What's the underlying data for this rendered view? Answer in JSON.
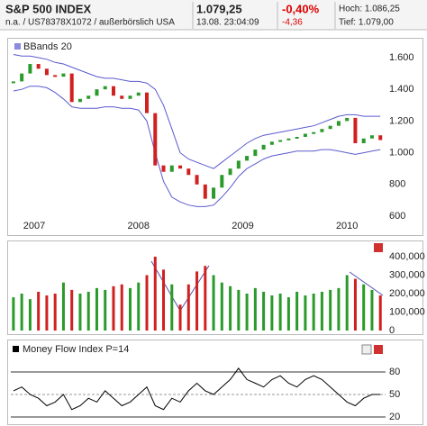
{
  "header": {
    "name": "S&P 500 INDEX",
    "info": "n.a. / US78378X1072 / außerbörslich USA",
    "price": "1.079,25",
    "time": "13.08. 23:04:09",
    "change_pct": "-0,40%",
    "change": "-4,36",
    "high": "Hoch: 1.086,25",
    "low": "Tief: 1.079,00"
  },
  "chart_data": [
    {
      "type": "line",
      "legend": "BBands 20",
      "x": [
        2007.3,
        2007.38,
        2007.46,
        2007.54,
        2007.62,
        2007.7,
        2007.78,
        2007.86,
        2007.94,
        2008.02,
        2008.1,
        2008.18,
        2008.26,
        2008.34,
        2008.42,
        2008.5,
        2008.58,
        2008.66,
        2008.74,
        2008.82,
        2008.9,
        2008.98,
        2009.06,
        2009.14,
        2009.22,
        2009.3,
        2009.38,
        2009.46,
        2009.54,
        2009.62,
        2009.7,
        2009.78,
        2009.86,
        2009.94,
        2010.02,
        2010.1,
        2010.18,
        2010.26,
        2010.34,
        2010.42,
        2010.5,
        2010.58,
        2010.66,
        2010.74,
        2010.82
      ],
      "series": [
        {
          "values": [
            1450,
            1500,
            1560,
            1530,
            1490,
            1480,
            1500,
            1320,
            1340,
            1360,
            1400,
            1420,
            1360,
            1340,
            1360,
            1380,
            1250,
            920,
            880,
            920,
            900,
            860,
            800,
            710,
            780,
            860,
            900,
            950,
            980,
            1020,
            1050,
            1070,
            1080,
            1090,
            1100,
            1120,
            1130,
            1150,
            1170,
            1200,
            1220,
            1060,
            1090,
            1110,
            1080
          ]
        }
      ],
      "up_color": "#2a9a2a",
      "down_color": "#d02020",
      "bands": {
        "color": "#5a5acf",
        "upper": [
          1620,
          1610,
          1610,
          1600,
          1590,
          1570,
          1560,
          1540,
          1520,
          1500,
          1480,
          1470,
          1470,
          1460,
          1450,
          1450,
          1440,
          1400,
          1300,
          1150,
          1000,
          960,
          940,
          920,
          900,
          940,
          980,
          1020,
          1060,
          1090,
          1110,
          1120,
          1130,
          1140,
          1150,
          1160,
          1170,
          1190,
          1210,
          1230,
          1240,
          1240,
          1230,
          1230,
          1230
        ],
        "lower": [
          1390,
          1400,
          1420,
          1420,
          1410,
          1380,
          1340,
          1290,
          1280,
          1280,
          1280,
          1290,
          1290,
          1280,
          1280,
          1270,
          1200,
          1000,
          820,
          720,
          690,
          670,
          660,
          660,
          670,
          720,
          780,
          850,
          900,
          930,
          960,
          980,
          990,
          1000,
          1010,
          1010,
          1010,
          1020,
          1020,
          1010,
          1000,
          990,
          1000,
          1010,
          1020
        ]
      },
      "xlim": [
        2007.275,
        2010.87
      ],
      "xticks": [
        {
          "value": 2007.5,
          "label": "2007"
        },
        {
          "value": 2008.5,
          "label": "2008"
        },
        {
          "value": 2009.5,
          "label": "2009"
        },
        {
          "value": 2010.5,
          "label": "2010"
        }
      ],
      "ylim": [
        500,
        1700
      ],
      "yticks": [
        {
          "value": 600,
          "label": "600"
        },
        {
          "value": 800,
          "label": "800"
        },
        {
          "value": 1000,
          "label": "1.000"
        },
        {
          "value": 1200,
          "label": "1.200"
        },
        {
          "value": 1400,
          "label": "1.400"
        },
        {
          "value": 1600,
          "label": "1.600"
        }
      ]
    },
    {
      "type": "bar",
      "values": [
        180000,
        200000,
        170000,
        210000,
        190000,
        200000,
        260000,
        220000,
        200000,
        210000,
        230000,
        220000,
        240000,
        250000,
        230000,
        260000,
        300000,
        400000,
        330000,
        250000,
        140000,
        250000,
        320000,
        350000,
        300000,
        260000,
        240000,
        220000,
        200000,
        230000,
        210000,
        190000,
        200000,
        180000,
        210000,
        190000,
        200000,
        210000,
        220000,
        230000,
        300000,
        280000,
        250000,
        220000,
        190000
      ],
      "ylim": [
        0,
        480000
      ],
      "yticks": [
        0,
        {
          "value": 100000,
          "label": "100,000"
        },
        {
          "value": 200000,
          "label": "200,000"
        },
        {
          "value": 300000,
          "label": "300,000"
        },
        {
          "value": 400000,
          "label": "400,000"
        }
      ]
    },
    {
      "type": "line",
      "title": "Money Flow Index P=14",
      "color": "#000000",
      "values": [
        55,
        60,
        50,
        45,
        35,
        40,
        50,
        30,
        35,
        45,
        40,
        55,
        45,
        35,
        40,
        50,
        60,
        35,
        30,
        45,
        40,
        55,
        65,
        55,
        50,
        60,
        70,
        85,
        70,
        65,
        60,
        70,
        75,
        65,
        60,
        70,
        75,
        70,
        60,
        50,
        40,
        35,
        45,
        50,
        50
      ],
      "ylim": [
        12,
        114
      ],
      "yticks": [
        20,
        50,
        80
      ]
    }
  ]
}
